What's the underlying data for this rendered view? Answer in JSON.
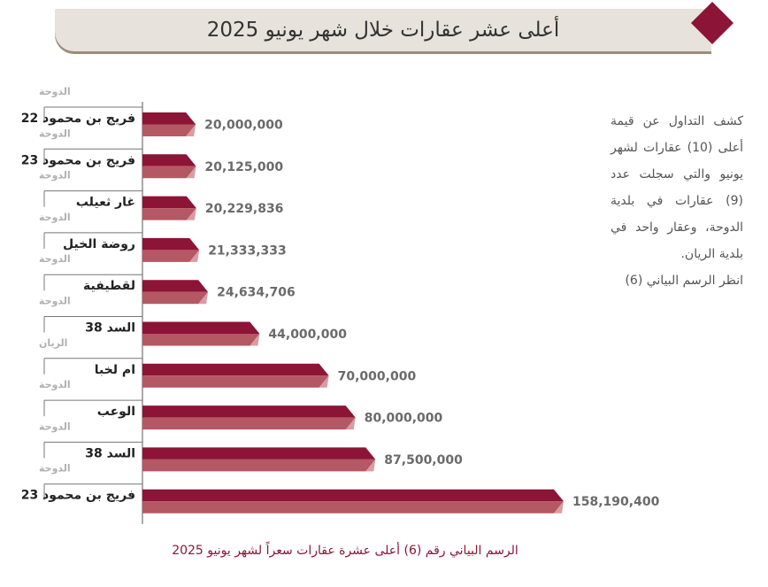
{
  "page": {
    "title": "أعلى عشر عقارات خلال شهر يونيو 2025",
    "description": [
      "كشف التداول عن قيمة أعلى (10) عقارات لشهر يونيو والتي سجلت عدد (9) عقارات في بلدية الدوحة، وعقار واحد في بلدية الريان.",
      "انظر الرسم البياني (6)"
    ],
    "caption": "الرسم البياني رقم (6) أعلى عشرة عقارات سعراً لشهر يونيو 2025"
  },
  "colors": {
    "bar_dark": "#8c1437",
    "bar_light": "#b45864",
    "bar_tip": "#d99ca2",
    "accent": "#8c1437",
    "banner": "#e7e2dc"
  },
  "chart_data": {
    "type": "bar",
    "orientation": "horizontal",
    "categories": [
      "فريج بن محمود 22",
      "فريج بن محمود 23",
      "غار ثعيلب",
      "روضة الخيل",
      "لقطيفية",
      "السد 38",
      "ام لخبا",
      "الوعب",
      "السد 38",
      "فريج بن محمود 23"
    ],
    "municipalities": [
      "الدوحة",
      "الدوحة",
      "الدوحة",
      "الدوحة",
      "الدوحة",
      "الدوحة",
      "الريان",
      "الدوحة",
      "الدوحة",
      "الدوحة"
    ],
    "values": [
      20000000,
      20125000,
      20229836,
      21333333,
      24634706,
      44000000,
      70000000,
      80000000,
      87500000,
      158190400
    ],
    "value_labels": [
      "20,000,000",
      "20,125,000",
      "20,229,836",
      "21,333,333",
      "24,634,706",
      "44,000,000",
      "70,000,000",
      "80,000,000",
      "87,500,000",
      "158,190,400"
    ],
    "legend": "none",
    "grid": false
  }
}
